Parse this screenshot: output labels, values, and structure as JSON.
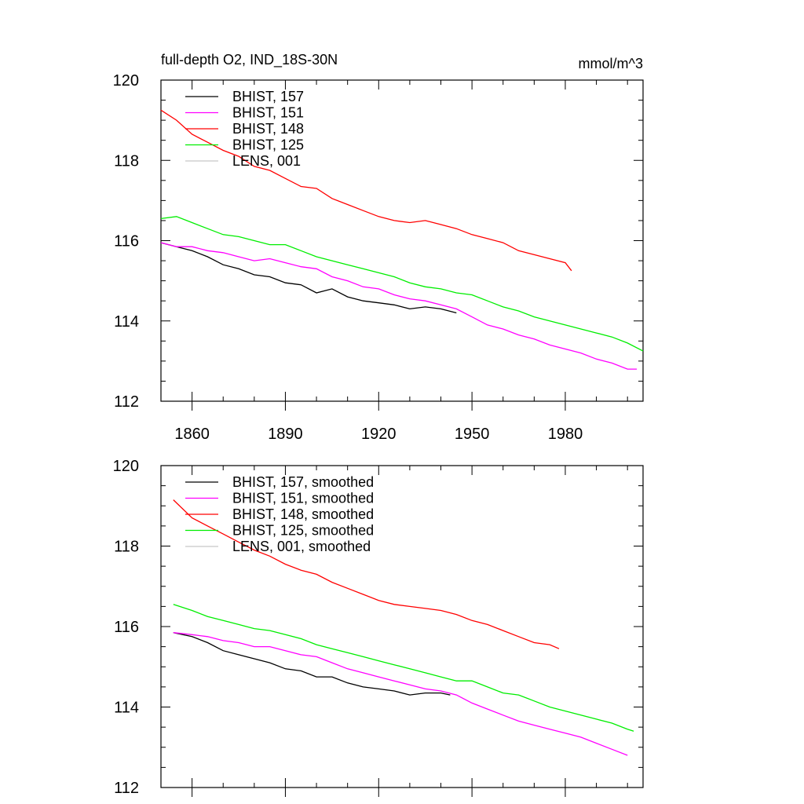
{
  "chart_data": [
    {
      "type": "line",
      "title": "full-depth O2, IND_18S-30N",
      "units": "mmol/m^3",
      "xlim": [
        1850,
        2005
      ],
      "ylim": [
        112,
        120
      ],
      "xticks": [
        1860,
        1890,
        1920,
        1950,
        1980
      ],
      "yticks": [
        112,
        114,
        116,
        118,
        120
      ],
      "legend_position": "top-left",
      "series": [
        {
          "name": "BHIST, 157",
          "color": "#000000",
          "x": [
            1850,
            1855,
            1860,
            1865,
            1870,
            1875,
            1880,
            1885,
            1890,
            1895,
            1900,
            1905,
            1910,
            1915,
            1920,
            1925,
            1930,
            1935,
            1940,
            1945
          ],
          "y": [
            115.95,
            115.85,
            115.75,
            115.6,
            115.4,
            115.3,
            115.15,
            115.1,
            114.95,
            114.9,
            114.7,
            114.8,
            114.6,
            114.5,
            114.45,
            114.4,
            114.3,
            114.35,
            114.3,
            114.2
          ]
        },
        {
          "name": "BHIST, 151",
          "color": "#ff00ff",
          "x": [
            1850,
            1855,
            1860,
            1865,
            1870,
            1875,
            1880,
            1885,
            1890,
            1895,
            1900,
            1905,
            1910,
            1915,
            1920,
            1925,
            1930,
            1935,
            1940,
            1945,
            1950,
            1955,
            1960,
            1965,
            1970,
            1975,
            1980,
            1985,
            1990,
            1995,
            2000,
            2003
          ],
          "y": [
            115.95,
            115.85,
            115.85,
            115.75,
            115.7,
            115.6,
            115.5,
            115.55,
            115.45,
            115.35,
            115.3,
            115.1,
            115.0,
            114.85,
            114.8,
            114.65,
            114.55,
            114.5,
            114.4,
            114.3,
            114.1,
            113.9,
            113.8,
            113.65,
            113.55,
            113.4,
            113.3,
            113.2,
            113.05,
            112.95,
            112.8,
            112.8
          ]
        },
        {
          "name": "BHIST, 148",
          "color": "#ff0000",
          "x": [
            1850,
            1855,
            1860,
            1865,
            1870,
            1875,
            1880,
            1885,
            1890,
            1895,
            1900,
            1905,
            1910,
            1915,
            1920,
            1925,
            1930,
            1935,
            1940,
            1945,
            1950,
            1955,
            1960,
            1965,
            1970,
            1975,
            1980,
            1982
          ],
          "y": [
            119.25,
            119.0,
            118.65,
            118.45,
            118.25,
            118.1,
            117.85,
            117.75,
            117.55,
            117.35,
            117.3,
            117.05,
            116.9,
            116.75,
            116.6,
            116.5,
            116.45,
            116.5,
            116.4,
            116.3,
            116.15,
            116.05,
            115.95,
            115.75,
            115.65,
            115.55,
            115.45,
            115.25
          ]
        },
        {
          "name": "BHIST, 125",
          "color": "#00ee00",
          "x": [
            1850,
            1855,
            1860,
            1865,
            1870,
            1875,
            1880,
            1885,
            1890,
            1895,
            1900,
            1905,
            1910,
            1915,
            1920,
            1925,
            1930,
            1935,
            1940,
            1945,
            1950,
            1955,
            1960,
            1965,
            1970,
            1975,
            1980,
            1985,
            1990,
            1995,
            2000,
            2005
          ],
          "y": [
            116.55,
            116.6,
            116.45,
            116.3,
            116.15,
            116.1,
            116.0,
            115.9,
            115.9,
            115.75,
            115.6,
            115.5,
            115.4,
            115.3,
            115.2,
            115.1,
            114.95,
            114.85,
            114.8,
            114.7,
            114.65,
            114.5,
            114.35,
            114.25,
            114.1,
            114.0,
            113.9,
            113.8,
            113.7,
            113.6,
            113.45,
            113.25
          ]
        },
        {
          "name": "LENS, 001",
          "color": "#c8c8c8",
          "x": [],
          "y": []
        }
      ]
    },
    {
      "type": "line",
      "title": "",
      "xlim": [
        1850,
        2005
      ],
      "ylim": [
        112,
        120
      ],
      "yticks": [
        112,
        114,
        116,
        118,
        120
      ],
      "legend_position": "top-left",
      "series": [
        {
          "name": "BHIST, 157, smoothed",
          "color": "#000000",
          "x": [
            1854,
            1860,
            1865,
            1870,
            1875,
            1880,
            1885,
            1890,
            1895,
            1900,
            1905,
            1910,
            1915,
            1920,
            1925,
            1930,
            1935,
            1940,
            1943
          ],
          "y": [
            115.85,
            115.75,
            115.6,
            115.4,
            115.3,
            115.2,
            115.1,
            114.95,
            114.9,
            114.75,
            114.75,
            114.6,
            114.5,
            114.45,
            114.4,
            114.3,
            114.35,
            114.35,
            114.3
          ]
        },
        {
          "name": "BHIST, 151, smoothed",
          "color": "#ff00ff",
          "x": [
            1854,
            1860,
            1865,
            1870,
            1875,
            1880,
            1885,
            1890,
            1895,
            1900,
            1905,
            1910,
            1915,
            1920,
            1925,
            1930,
            1935,
            1940,
            1945,
            1950,
            1955,
            1960,
            1965,
            1970,
            1975,
            1980,
            1985,
            1990,
            1995,
            2000
          ],
          "y": [
            115.85,
            115.8,
            115.75,
            115.65,
            115.6,
            115.5,
            115.5,
            115.4,
            115.3,
            115.25,
            115.1,
            114.95,
            114.85,
            114.75,
            114.65,
            114.55,
            114.45,
            114.4,
            114.3,
            114.1,
            113.95,
            113.8,
            113.65,
            113.55,
            113.45,
            113.35,
            113.25,
            113.1,
            112.95,
            112.8
          ]
        },
        {
          "name": "BHIST, 148, smoothed",
          "color": "#ff0000",
          "x": [
            1854,
            1860,
            1865,
            1870,
            1875,
            1880,
            1885,
            1890,
            1895,
            1900,
            1905,
            1910,
            1915,
            1920,
            1925,
            1930,
            1935,
            1940,
            1945,
            1950,
            1955,
            1960,
            1965,
            1970,
            1975,
            1978
          ],
          "y": [
            119.15,
            118.7,
            118.5,
            118.3,
            118.1,
            117.9,
            117.75,
            117.55,
            117.4,
            117.3,
            117.1,
            116.95,
            116.8,
            116.65,
            116.55,
            116.5,
            116.45,
            116.4,
            116.3,
            116.15,
            116.05,
            115.9,
            115.75,
            115.6,
            115.55,
            115.45
          ]
        },
        {
          "name": "BHIST, 125, smoothed",
          "color": "#00ee00",
          "x": [
            1854,
            1860,
            1865,
            1870,
            1875,
            1880,
            1885,
            1890,
            1895,
            1900,
            1905,
            1910,
            1915,
            1920,
            1925,
            1930,
            1935,
            1940,
            1945,
            1950,
            1955,
            1960,
            1965,
            1970,
            1975,
            1980,
            1985,
            1990,
            1995,
            2000,
            2002
          ],
          "y": [
            116.55,
            116.4,
            116.25,
            116.15,
            116.05,
            115.95,
            115.9,
            115.8,
            115.7,
            115.55,
            115.45,
            115.35,
            115.25,
            115.15,
            115.05,
            114.95,
            114.85,
            114.75,
            114.65,
            114.65,
            114.5,
            114.35,
            114.3,
            114.15,
            114.0,
            113.9,
            113.8,
            113.7,
            113.6,
            113.45,
            113.4
          ]
        },
        {
          "name": "LENS, 001, smoothed",
          "color": "#c8c8c8",
          "x": [],
          "y": []
        }
      ]
    }
  ]
}
